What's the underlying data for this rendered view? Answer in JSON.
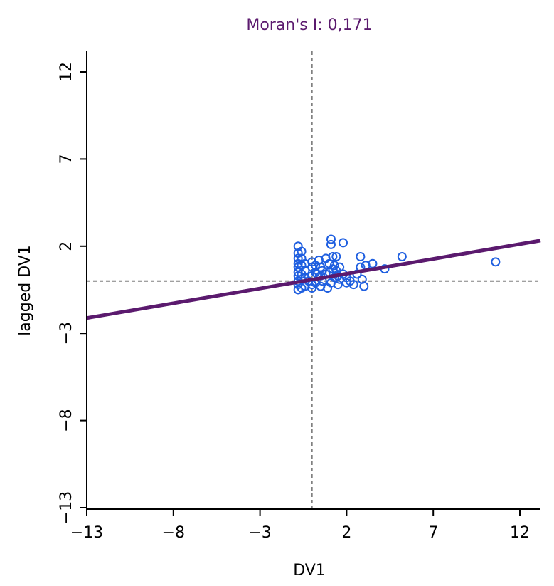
{
  "chart_data": {
    "type": "scatter",
    "title": "Moran's I: 0,171",
    "xlabel": "DV1",
    "ylabel": "lagged DV1",
    "xlim": [
      -13,
      13
    ],
    "ylim": [
      -13,
      13
    ],
    "xticks": [
      -13,
      -8,
      -3,
      2,
      7,
      12
    ],
    "yticks": [
      -13,
      -8,
      -3,
      2,
      7,
      12
    ],
    "xtick_labels": [
      "−13",
      "−8",
      "−3",
      "2",
      "7",
      "12"
    ],
    "ytick_labels": [
      "−13",
      "−8",
      "−3",
      "2",
      "7",
      "12"
    ],
    "reference_lines": {
      "x_mean": 0,
      "y_mean": 0
    },
    "regression_line": {
      "slope": 0.171,
      "intercept": 0.1
    },
    "grid": false,
    "series": [
      {
        "x": [
          -0.8,
          -0.8,
          -0.8,
          -0.8,
          -0.8,
          -0.8,
          -0.8,
          -0.8,
          -0.8,
          -0.8,
          -0.6,
          -0.6,
          -0.6,
          -0.6,
          -0.6,
          -0.6,
          -0.4,
          -0.4,
          -0.4,
          -0.4,
          -0.2,
          0,
          0,
          0,
          0,
          0,
          0.2,
          0.2,
          0.2,
          0.3,
          0.4,
          0.5,
          0.5,
          0.5,
          0.6,
          0.6,
          0.8,
          0.8,
          0.9,
          1.0,
          1.0,
          1.1,
          1.1,
          1.1,
          1.2,
          1.2,
          1.3,
          1.3,
          1.4,
          1.4,
          1.5,
          1.5,
          1.6,
          1.6,
          1.8,
          1.8,
          2.0,
          2.0,
          2.2,
          2.4,
          2.6,
          2.8,
          2.8,
          2.9,
          3.0,
          3.1,
          3.5,
          4.2,
          5.2,
          10.6
        ],
        "y": [
          2.0,
          1.6,
          1.3,
          1.0,
          0.8,
          0.5,
          0.3,
          0.0,
          -0.2,
          -0.5,
          1.7,
          1.3,
          0.9,
          0.4,
          0.1,
          -0.4,
          1.0,
          0.6,
          0.2,
          -0.3,
          0.0,
          1.1,
          0.8,
          0.3,
          -0.2,
          -0.4,
          0.9,
          0.5,
          -0.1,
          0.4,
          1.2,
          0.8,
          0.3,
          -0.3,
          0.6,
          0.0,
          1.3,
          0.4,
          -0.4,
          1.0,
          0.5,
          2.4,
          2.1,
          -0.1,
          1.4,
          0.7,
          0.9,
          0.2,
          1.4,
          0.6,
          -0.2,
          0.3,
          0.8,
          0.1,
          2.2,
          0.4,
          0.2,
          -0.1,
          0.0,
          -0.2,
          0.4,
          1.4,
          0.8,
          0.1,
          -0.3,
          0.9,
          1.0,
          0.7,
          1.4,
          1.1
        ]
      }
    ],
    "colors": {
      "points": "#1f5fe0",
      "regression": "#5b1a6e",
      "title": "#5b1a6e",
      "reference": "#808080",
      "axis": "#000000"
    }
  }
}
